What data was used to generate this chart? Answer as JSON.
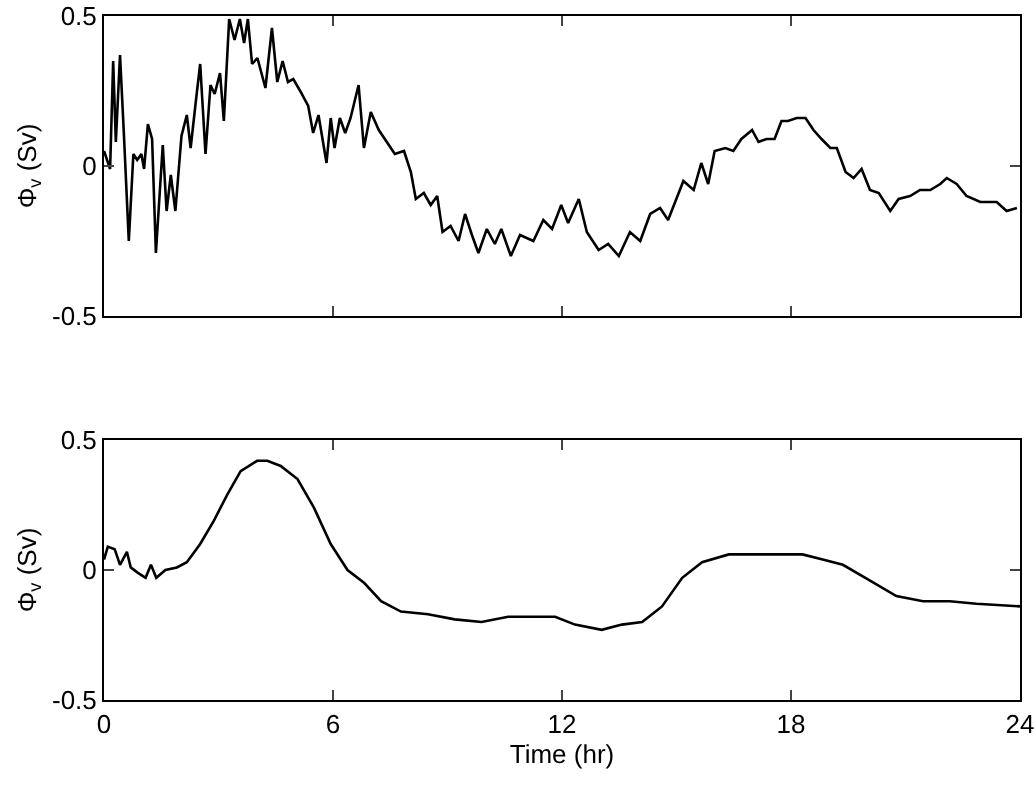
{
  "chart_data": [
    {
      "type": "line",
      "ylabel": "Φ$_{v}$ (Sv)",
      "xlim": [
        0,
        24
      ],
      "ylim": [
        -0.5,
        0.5
      ],
      "xticks": [
        0,
        6,
        12,
        18,
        24
      ],
      "yticks": [
        -0.5,
        0,
        0.5
      ],
      "grid": false,
      "tick_labels": "y",
      "marker": "none",
      "line_style": "solid",
      "x": [
        0,
        0.16,
        0.24,
        0.31,
        0.42,
        0.52,
        0.65,
        0.77,
        0.87,
        0.98,
        1.05,
        1.15,
        1.26,
        1.36,
        1.54,
        1.64,
        1.75,
        1.87,
        2.03,
        2.17,
        2.27,
        2.41,
        2.52,
        2.66,
        2.79,
        2.9,
        3.04,
        3.14,
        3.28,
        3.42,
        3.56,
        3.67,
        3.77,
        3.88,
        4.02,
        4.23,
        4.4,
        4.54,
        4.68,
        4.82,
        4.96,
        5.14,
        5.35,
        5.48,
        5.62,
        5.83,
        5.94,
        6.04,
        6.18,
        6.32,
        6.46,
        6.67,
        6.81,
        6.99,
        7.2,
        7.41,
        7.62,
        7.86,
        8.04,
        8.17,
        8.38,
        8.56,
        8.73,
        8.87,
        9.08,
        9.29,
        9.46,
        9.64,
        9.81,
        10.03,
        10.24,
        10.41,
        10.66,
        10.9,
        11.25,
        11.51,
        11.74,
        11.98,
        12.16,
        12.44,
        12.65,
        12.96,
        13.21,
        13.49,
        13.78,
        14.05,
        14.31,
        14.57,
        14.78,
        15.18,
        15.45,
        15.65,
        15.83,
        16.0,
        16.28,
        16.49,
        16.7,
        16.98,
        17.15,
        17.36,
        17.57,
        17.75,
        17.92,
        18.15,
        18.38,
        18.59,
        18.8,
        19.03,
        19.2,
        19.43,
        19.64,
        19.85,
        20.07,
        20.3,
        20.6,
        20.82,
        21.12,
        21.38,
        21.65,
        21.91,
        22.08,
        22.34,
        22.6,
        22.96,
        23.39,
        23.65,
        23.92
      ],
      "series": [
        {
          "color": "#000000",
          "values": [
            0.05,
            -0.01,
            0.35,
            0.08,
            0.37,
            0.11,
            -0.25,
            0.04,
            0.02,
            0.04,
            -0.01,
            0.14,
            0.09,
            -0.29,
            0.07,
            -0.15,
            -0.03,
            -0.15,
            0.1,
            0.17,
            0.06,
            0.22,
            0.34,
            0.04,
            0.27,
            0.24,
            0.31,
            0.15,
            0.49,
            0.42,
            0.49,
            0.41,
            0.49,
            0.34,
            0.36,
            0.26,
            0.46,
            0.28,
            0.35,
            0.28,
            0.29,
            0.25,
            0.2,
            0.11,
            0.17,
            0.01,
            0.16,
            0.06,
            0.16,
            0.11,
            0.16,
            0.27,
            0.06,
            0.18,
            0.12,
            0.08,
            0.04,
            0.05,
            -0.02,
            -0.11,
            -0.09,
            -0.13,
            -0.1,
            -0.22,
            -0.2,
            -0.25,
            -0.16,
            -0.23,
            -0.29,
            -0.21,
            -0.26,
            -0.21,
            -0.3,
            -0.23,
            -0.25,
            -0.18,
            -0.21,
            -0.13,
            -0.19,
            -0.11,
            -0.22,
            -0.28,
            -0.26,
            -0.3,
            -0.22,
            -0.25,
            -0.16,
            -0.14,
            -0.18,
            -0.05,
            -0.08,
            0.01,
            -0.06,
            0.05,
            0.06,
            0.05,
            0.09,
            0.12,
            0.08,
            0.09,
            0.09,
            0.15,
            0.15,
            0.16,
            0.16,
            0.12,
            0.09,
            0.06,
            0.06,
            -0.02,
            -0.04,
            -0.01,
            -0.08,
            -0.09,
            -0.15,
            -0.11,
            -0.1,
            -0.08,
            -0.08,
            -0.06,
            -0.04,
            -0.06,
            -0.1,
            -0.12,
            -0.12,
            -0.15,
            -0.14
          ]
        }
      ]
    },
    {
      "type": "line",
      "xlabel": "Time (hr)",
      "ylabel": "Φ$_{v}$ (Sv)",
      "xlim": [
        0,
        24
      ],
      "ylim": [
        -0.5,
        0.5
      ],
      "xticks": [
        0,
        6,
        12,
        18,
        24
      ],
      "yticks": [
        -0.5,
        0,
        0.5
      ],
      "grid": false,
      "marker": "none",
      "line_style": "solid",
      "x": [
        0,
        0.1,
        0.28,
        0.42,
        0.6,
        0.7,
        0.88,
        1.09,
        1.23,
        1.37,
        1.61,
        1.91,
        2.17,
        2.52,
        2.88,
        3.23,
        3.58,
        4.01,
        4.28,
        4.63,
        5.07,
        5.5,
        5.94,
        6.38,
        6.82,
        7.26,
        7.78,
        8.49,
        9.19,
        9.89,
        10.59,
        11.29,
        11.82,
        12.34,
        13.04,
        13.57,
        14.1,
        14.62,
        15.15,
        15.67,
        16.37,
        17.08,
        17.78,
        18.3,
        18.83,
        19.36,
        20.06,
        20.76,
        21.46,
        22.16,
        22.86,
        24
      ],
      "series": [
        {
          "color": "#000000",
          "values": [
            0.04,
            0.09,
            0.08,
            0.02,
            0.07,
            0.01,
            -0.01,
            -0.03,
            0.02,
            -0.03,
            0.0,
            0.01,
            0.03,
            0.1,
            0.19,
            0.29,
            0.38,
            0.42,
            0.42,
            0.4,
            0.35,
            0.24,
            0.1,
            0.0,
            -0.05,
            -0.12,
            -0.16,
            -0.17,
            -0.19,
            -0.2,
            -0.18,
            -0.18,
            -0.18,
            -0.21,
            -0.23,
            -0.21,
            -0.2,
            -0.14,
            -0.03,
            0.03,
            0.06,
            0.06,
            0.06,
            0.06,
            0.04,
            0.02,
            -0.04,
            -0.1,
            -0.12,
            -0.12,
            -0.13,
            -0.14
          ]
        }
      ]
    }
  ]
}
